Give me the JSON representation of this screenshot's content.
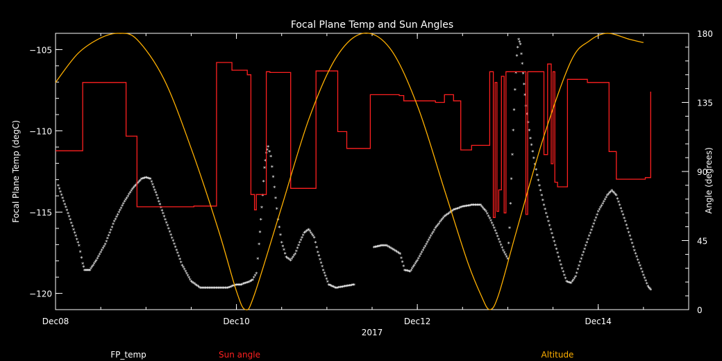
{
  "chart_data": {
    "type": "line",
    "title": "Focal Plane Temp and Sun Angles",
    "xlabel": "2017",
    "ylabel_left": "Focal Plane Temp (degC)",
    "ylabel_right": "Angle (degrees)",
    "x_ticks": [
      {
        "label": "Dec08",
        "x": 0
      },
      {
        "label": "Dec10",
        "x": 2
      },
      {
        "label": "Dec12",
        "x": 4
      },
      {
        "label": "Dec14",
        "x": 6
      }
    ],
    "xlim": [
      0,
      7
    ],
    "ylim_left": [
      -121,
      -104
    ],
    "ylim_right": [
      0,
      180
    ],
    "y_ticks_left": [
      -105,
      -110,
      -115,
      -120
    ],
    "y_ticks_right": [
      0,
      45,
      90,
      135,
      180
    ],
    "legend": [
      {
        "name": "FP_temp",
        "color": "#ffffff"
      },
      {
        "name": "Sun angle",
        "color": "#ff2020"
      },
      {
        "name": "Altitude",
        "color": "#ffb000"
      }
    ],
    "series": [
      {
        "name": "FP_temp",
        "axis": "left",
        "style": "markers",
        "color": "#ffffff",
        "points": [
          [
            0.03,
            -113.4
          ],
          [
            0.15,
            -115.3
          ],
          [
            0.2,
            -116.1
          ],
          [
            0.26,
            -117.1
          ],
          [
            0.3,
            -118.2
          ],
          [
            0.32,
            -118.6
          ],
          [
            0.38,
            -118.6
          ],
          [
            0.45,
            -118
          ],
          [
            0.55,
            -117
          ],
          [
            0.65,
            -115.6
          ],
          [
            0.75,
            -114.5
          ],
          [
            0.85,
            -113.6
          ],
          [
            0.95,
            -113
          ],
          [
            1.0,
            -112.9
          ],
          [
            1.05,
            -113
          ],
          [
            1.12,
            -114
          ],
          [
            1.2,
            -115.3
          ],
          [
            1.3,
            -116.8
          ],
          [
            1.4,
            -118.3
          ],
          [
            1.5,
            -119.3
          ],
          [
            1.6,
            -119.7
          ],
          [
            1.7,
            -119.7
          ],
          [
            1.8,
            -119.7
          ],
          [
            1.9,
            -119.7
          ],
          [
            1.95,
            -119.6
          ],
          [
            2.0,
            -119.5
          ],
          [
            2.05,
            -119.5
          ],
          [
            2.1,
            -119.4
          ],
          [
            2.15,
            -119.3
          ],
          [
            2.18,
            -119.2
          ],
          [
            2.22,
            -118.8
          ],
          [
            2.25,
            -117
          ],
          [
            2.27,
            -115.5
          ],
          [
            2.29,
            -114
          ],
          [
            2.31,
            -112.3
          ],
          [
            2.33,
            -111.4
          ],
          [
            2.35,
            -111
          ],
          [
            2.38,
            -111.6
          ],
          [
            2.42,
            -113.5
          ],
          [
            2.46,
            -115.5
          ],
          [
            2.5,
            -116.9
          ],
          [
            2.55,
            -117.8
          ],
          [
            2.6,
            -118
          ],
          [
            2.65,
            -117.6
          ],
          [
            2.7,
            -116.9
          ],
          [
            2.75,
            -116.3
          ],
          [
            2.8,
            -116.1
          ],
          [
            2.86,
            -116.6
          ],
          [
            2.9,
            -117.5
          ],
          [
            2.96,
            -118.6
          ],
          [
            3.02,
            -119.5
          ],
          [
            3.1,
            -119.7
          ],
          [
            3.2,
            -119.6
          ],
          [
            3.3,
            -119.5
          ],
          [
            3.52,
            -117.2
          ],
          [
            3.6,
            -117.1
          ],
          [
            3.66,
            -117.1
          ],
          [
            3.75,
            -117.4
          ],
          [
            3.81,
            -117.6
          ],
          [
            3.86,
            -118.6
          ],
          [
            3.92,
            -118.7
          ],
          [
            4.0,
            -118
          ],
          [
            4.1,
            -117
          ],
          [
            4.2,
            -116
          ],
          [
            4.3,
            -115.3
          ],
          [
            4.4,
            -114.9
          ],
          [
            4.5,
            -114.7
          ],
          [
            4.6,
            -114.6
          ],
          [
            4.7,
            -114.6
          ],
          [
            4.76,
            -115
          ],
          [
            4.8,
            -115.4
          ],
          [
            4.85,
            -116
          ],
          [
            4.9,
            -116.7
          ],
          [
            4.95,
            -117.4
          ],
          [
            5.0,
            -117.9
          ],
          [
            5.02,
            -116
          ],
          [
            5.04,
            -113
          ],
          [
            5.06,
            -110
          ],
          [
            5.08,
            -107.5
          ],
          [
            5.1,
            -105.4
          ],
          [
            5.12,
            -104.4
          ],
          [
            5.14,
            -104.7
          ],
          [
            5.17,
            -106.5
          ],
          [
            5.2,
            -108.5
          ],
          [
            5.25,
            -110.5
          ],
          [
            5.3,
            -112.1
          ],
          [
            5.35,
            -113.4
          ],
          [
            5.4,
            -114.6
          ],
          [
            5.5,
            -116.6
          ],
          [
            5.6,
            -118.5
          ],
          [
            5.65,
            -119.3
          ],
          [
            5.7,
            -119.4
          ],
          [
            5.75,
            -119
          ],
          [
            5.8,
            -118.1
          ],
          [
            5.9,
            -116.5
          ],
          [
            6.0,
            -115
          ],
          [
            6.1,
            -114
          ],
          [
            6.15,
            -113.7
          ],
          [
            6.2,
            -114
          ],
          [
            6.3,
            -115.6
          ],
          [
            6.4,
            -117.4
          ],
          [
            6.5,
            -118.9
          ],
          [
            6.55,
            -119.6
          ],
          [
            6.58,
            -119.8
          ]
        ]
      },
      {
        "name": "Sun angle",
        "axis": "right",
        "style": "step",
        "color": "#ff2020",
        "points": [
          [
            0.0,
            103.5
          ],
          [
            0.3,
            103.5
          ],
          [
            0.3,
            148
          ],
          [
            0.78,
            148
          ],
          [
            0.78,
            113
          ],
          [
            0.9,
            113
          ],
          [
            0.9,
            67
          ],
          [
            1.53,
            67
          ],
          [
            1.53,
            67.5
          ],
          [
            1.78,
            67.5
          ],
          [
            1.78,
            161
          ],
          [
            1.95,
            161
          ],
          [
            1.95,
            156
          ],
          [
            2.12,
            156
          ],
          [
            2.12,
            153
          ],
          [
            2.16,
            153
          ],
          [
            2.16,
            75
          ],
          [
            2.2,
            75
          ],
          [
            2.2,
            65
          ],
          [
            2.22,
            65
          ],
          [
            2.22,
            75
          ],
          [
            2.33,
            75
          ],
          [
            2.33,
            155
          ],
          [
            2.37,
            155
          ],
          [
            2.37,
            154.5
          ],
          [
            2.6,
            154.5
          ],
          [
            2.6,
            79
          ],
          [
            2.88,
            79
          ],
          [
            2.88,
            155.5
          ],
          [
            3.12,
            155.5
          ],
          [
            3.12,
            116
          ],
          [
            3.22,
            116
          ],
          [
            3.22,
            105
          ],
          [
            3.48,
            105
          ],
          [
            3.48,
            140
          ],
          [
            3.8,
            140
          ],
          [
            3.8,
            139.5
          ],
          [
            3.85,
            139.5
          ],
          [
            3.85,
            136
          ],
          [
            4.2,
            136
          ],
          [
            4.2,
            135
          ],
          [
            4.3,
            135
          ],
          [
            4.3,
            140
          ],
          [
            4.4,
            140
          ],
          [
            4.4,
            136
          ],
          [
            4.48,
            136
          ],
          [
            4.48,
            104
          ],
          [
            4.6,
            104
          ],
          [
            4.6,
            107
          ],
          [
            4.8,
            107
          ],
          [
            4.8,
            155
          ],
          [
            4.84,
            155
          ],
          [
            4.84,
            60
          ],
          [
            4.86,
            60
          ],
          [
            4.86,
            148
          ],
          [
            4.88,
            148
          ],
          [
            4.88,
            64
          ],
          [
            4.9,
            64
          ],
          [
            4.9,
            78
          ],
          [
            4.93,
            78
          ],
          [
            4.93,
            152
          ],
          [
            4.96,
            152
          ],
          [
            4.96,
            63
          ],
          [
            4.98,
            63
          ],
          [
            4.98,
            155
          ],
          [
            5.2,
            155
          ],
          [
            5.2,
            62
          ],
          [
            5.22,
            62
          ],
          [
            5.22,
            155
          ],
          [
            5.4,
            155
          ],
          [
            5.4,
            101
          ],
          [
            5.44,
            101
          ],
          [
            5.44,
            160
          ],
          [
            5.48,
            160
          ],
          [
            5.48,
            95
          ],
          [
            5.5,
            95
          ],
          [
            5.5,
            155
          ],
          [
            5.52,
            155
          ],
          [
            5.52,
            83
          ],
          [
            5.55,
            83
          ],
          [
            5.55,
            80
          ],
          [
            5.66,
            80
          ],
          [
            5.66,
            150
          ],
          [
            5.88,
            150
          ],
          [
            5.88,
            148
          ],
          [
            6.12,
            148
          ],
          [
            6.12,
            103
          ],
          [
            6.2,
            103
          ],
          [
            6.2,
            85
          ],
          [
            6.52,
            85
          ],
          [
            6.52,
            86
          ],
          [
            6.58,
            86
          ],
          [
            6.58,
            142
          ]
        ]
      },
      {
        "name": "Altitude",
        "axis": "right",
        "style": "line",
        "color": "#ffb000",
        "points": [
          [
            0.0,
            148
          ],
          [
            0.25,
            167
          ],
          [
            0.5,
            177
          ],
          [
            0.7,
            180
          ],
          [
            0.9,
            176
          ],
          [
            1.2,
            150
          ],
          [
            1.5,
            105
          ],
          [
            1.8,
            52
          ],
          [
            2.0,
            12
          ],
          [
            2.1,
            0
          ],
          [
            2.2,
            10
          ],
          [
            2.5,
            67
          ],
          [
            2.8,
            124
          ],
          [
            3.1,
            164
          ],
          [
            3.4,
            180
          ],
          [
            3.7,
            170
          ],
          [
            4.0,
            133
          ],
          [
            4.3,
            78
          ],
          [
            4.55,
            32
          ],
          [
            4.7,
            10
          ],
          [
            4.8,
            0
          ],
          [
            4.9,
            10
          ],
          [
            5.1,
            52
          ],
          [
            5.4,
            113
          ],
          [
            5.7,
            162
          ],
          [
            5.9,
            175
          ],
          [
            6.1,
            180
          ],
          [
            6.35,
            176
          ],
          [
            6.5,
            174
          ]
        ]
      }
    ]
  }
}
